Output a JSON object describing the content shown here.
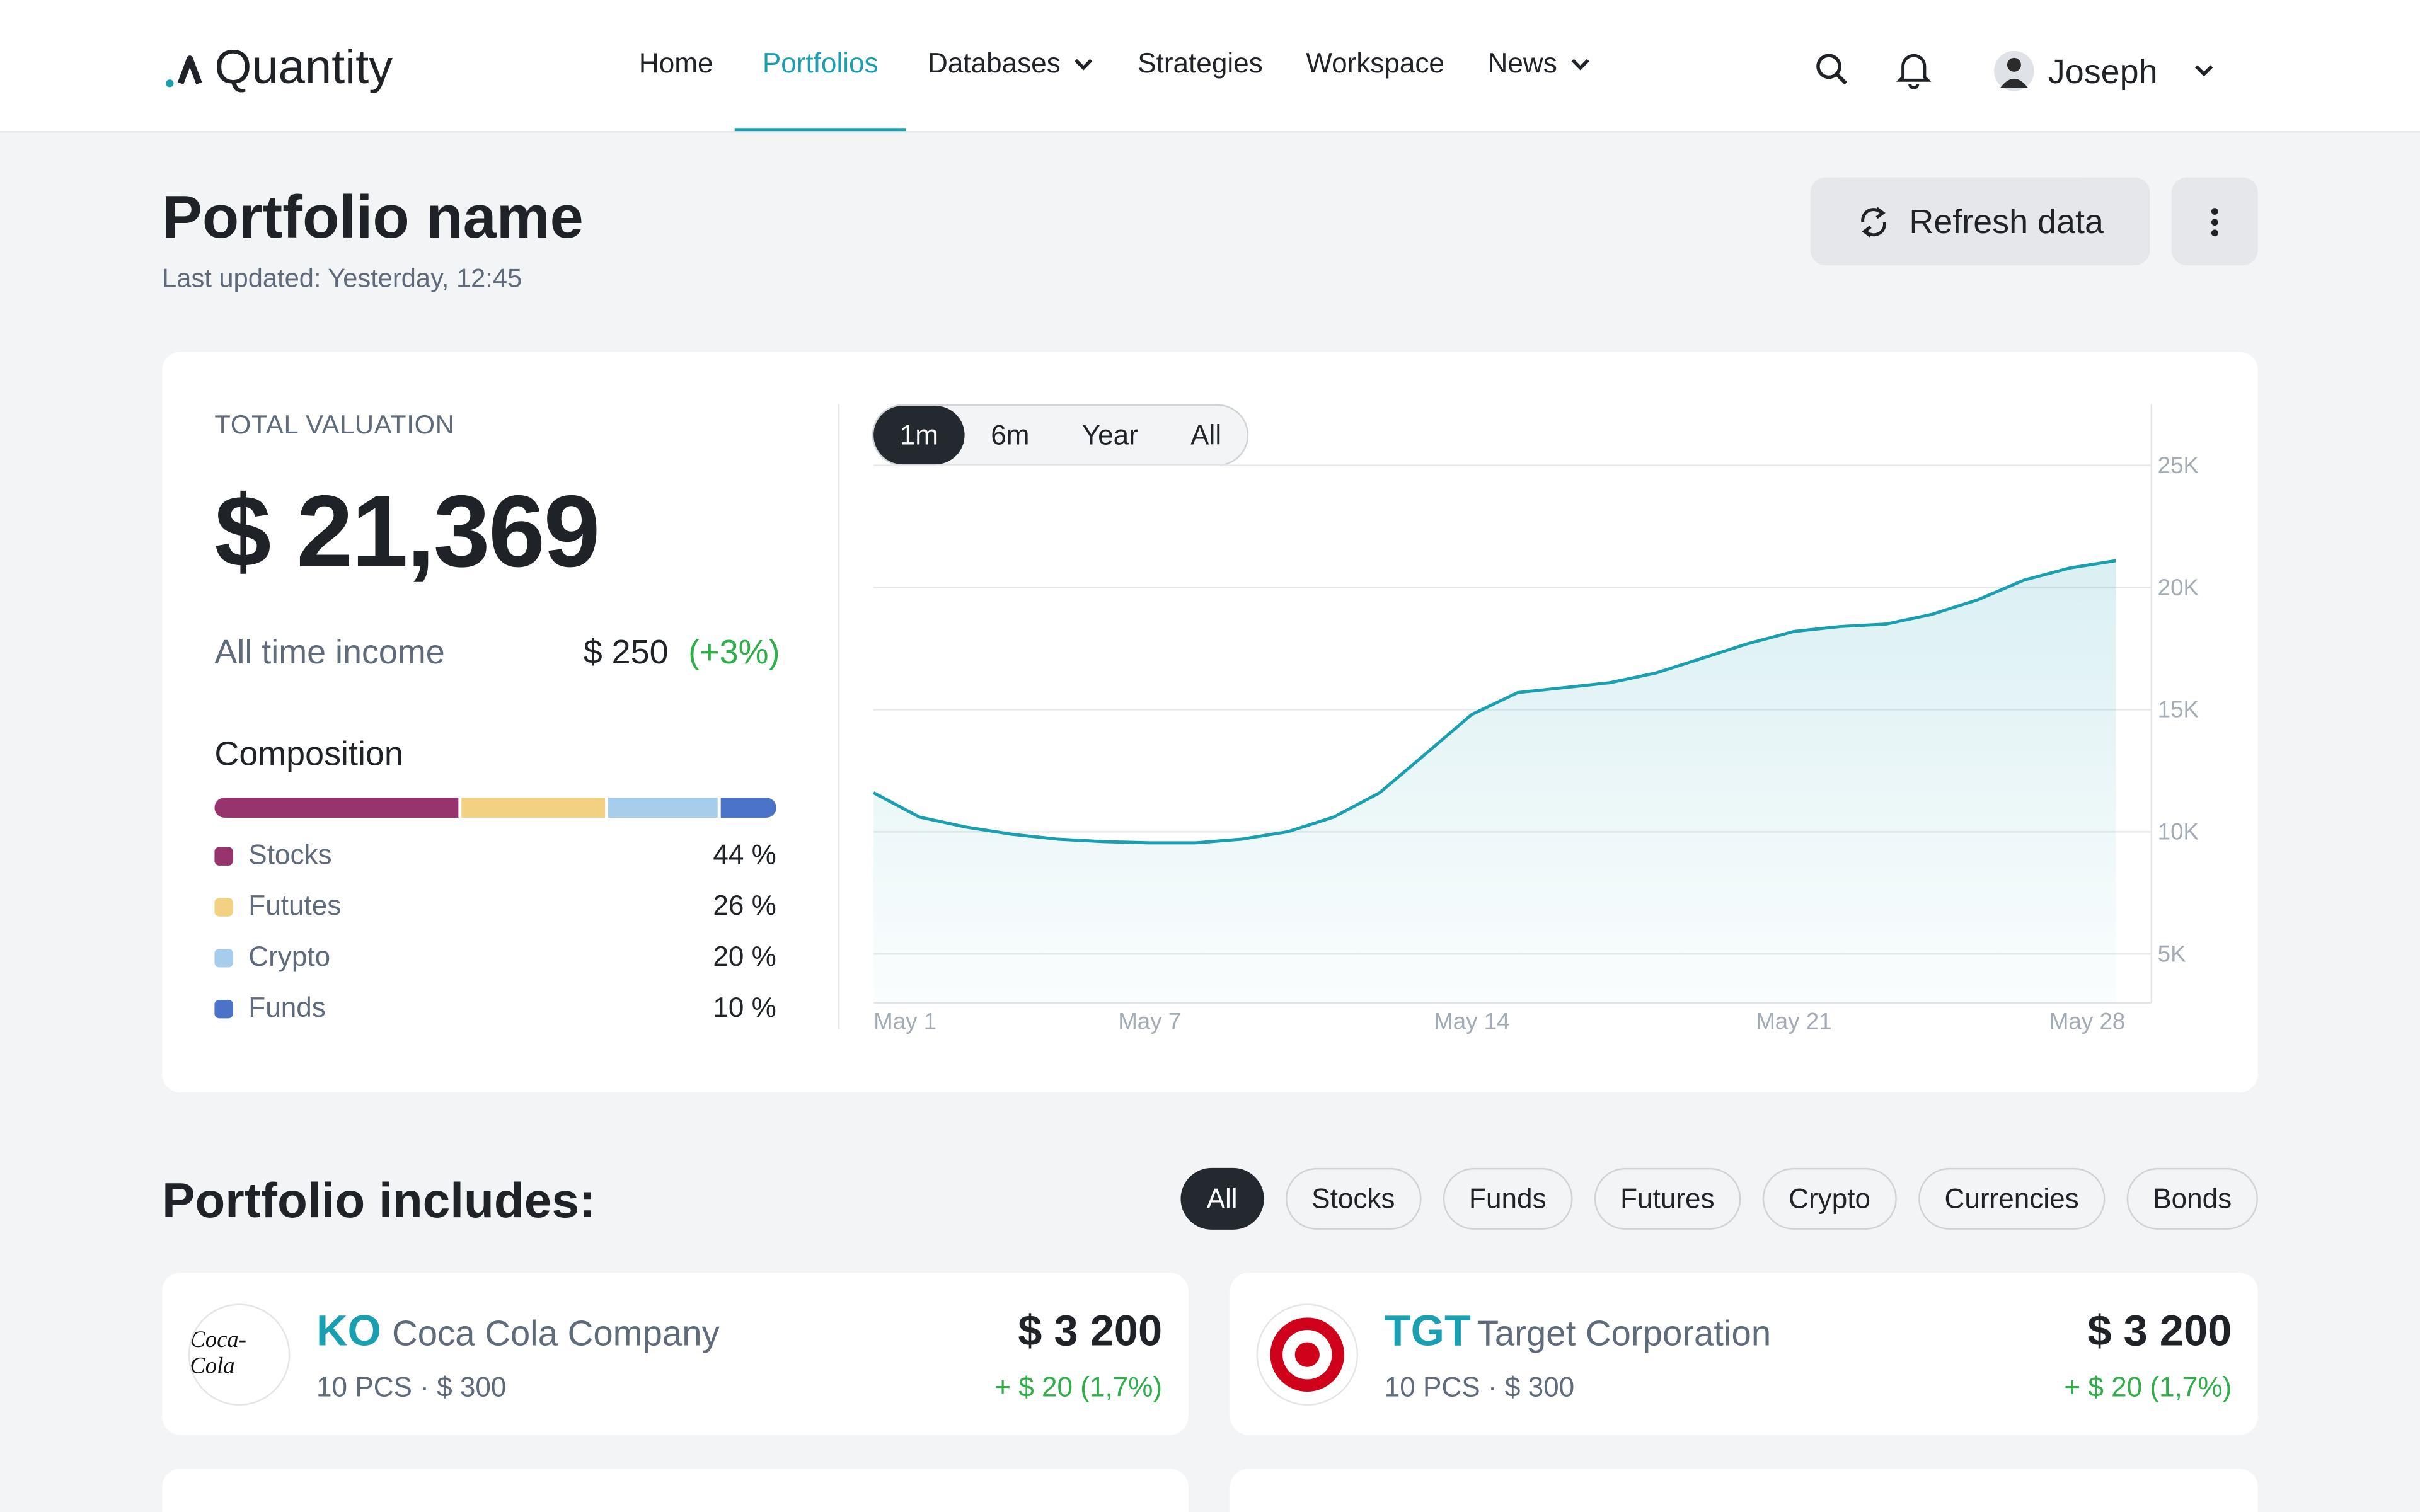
{
  "nav": {
    "logo": "Quantity",
    "items": [
      "Home",
      "Portfolios",
      "Databases",
      "Strategies",
      "Workspace",
      "News"
    ],
    "active": 1,
    "dropdowns": [
      2,
      5
    ],
    "user": "Joseph"
  },
  "header": {
    "title": "Portfolio name",
    "updated": "Last updated: Yesterday, 12:45",
    "refresh": "Refresh data"
  },
  "valuation": {
    "label": "TOTAL VALUATION",
    "total": "$ 21,369",
    "income_label": "All time income",
    "income": "$ 250",
    "income_change": "(+3%)"
  },
  "composition": {
    "title": "Composition",
    "categories": [
      "Stocks",
      "Fututes",
      "Crypto",
      "Funds"
    ],
    "values": [
      44,
      26,
      20,
      10
    ],
    "value_labels": [
      "44 %",
      "26 %",
      "20 %",
      "10 %"
    ],
    "colors": [
      "#97336d",
      "#f3d183",
      "#a7cdec",
      "#4b74c9"
    ]
  },
  "chart": {
    "type": "area",
    "ranges": [
      "1m",
      "6m",
      "Year",
      "All"
    ],
    "active_range": 0,
    "x": [
      1,
      2,
      3,
      4,
      5,
      6,
      7,
      8,
      9,
      10,
      11,
      12,
      13,
      14,
      15,
      16,
      17,
      18,
      19,
      20,
      21,
      22,
      23,
      24,
      25,
      26,
      27,
      28
    ],
    "values": [
      11.6,
      10.6,
      10.2,
      9.9,
      9.7,
      9.6,
      9.55,
      9.55,
      9.7,
      10.0,
      10.6,
      11.6,
      13.2,
      14.8,
      15.7,
      15.9,
      16.1,
      16.5,
      17.1,
      17.7,
      18.2,
      18.4,
      18.5,
      18.9,
      19.5,
      20.3,
      20.8,
      21.1
    ],
    "color": "#1a9fb0",
    "xlim": [
      1,
      28
    ],
    "xticks": [
      {
        "value": 1,
        "label": "May 1"
      },
      {
        "value": 7,
        "label": "May 7"
      },
      {
        "value": 14,
        "label": "May 14"
      },
      {
        "value": 21,
        "label": "May 21"
      },
      {
        "value": 28,
        "label": "May 28"
      }
    ],
    "ylim": [
      3,
      27.5
    ],
    "yticks": [
      {
        "value": 5,
        "label": "5K"
      },
      {
        "value": 10,
        "label": "10K"
      },
      {
        "value": 15,
        "label": "15K"
      },
      {
        "value": 20,
        "label": "20K"
      },
      {
        "value": 25,
        "label": "25K"
      }
    ],
    "grid": true
  },
  "holdings": {
    "title": "Portfolio includes:",
    "filters": [
      "All",
      "Stocks",
      "Funds",
      "Futures",
      "Crypto",
      "Currencies",
      "Bonds"
    ],
    "active_filter": 0,
    "items": [
      {
        "ticker": "KO",
        "name": "Coca Cola Company",
        "logo": "Coca-Cola",
        "amount": "10 PCS · $ 300",
        "value": "$ 3 200",
        "change": "+ $ 20 (1,7%)"
      },
      {
        "ticker": "TGT",
        "name": "Target Corporation",
        "amount": "10 PCS · $ 300",
        "value": "$ 3 200",
        "change": "+ $ 20 (1,7%)"
      }
    ]
  }
}
